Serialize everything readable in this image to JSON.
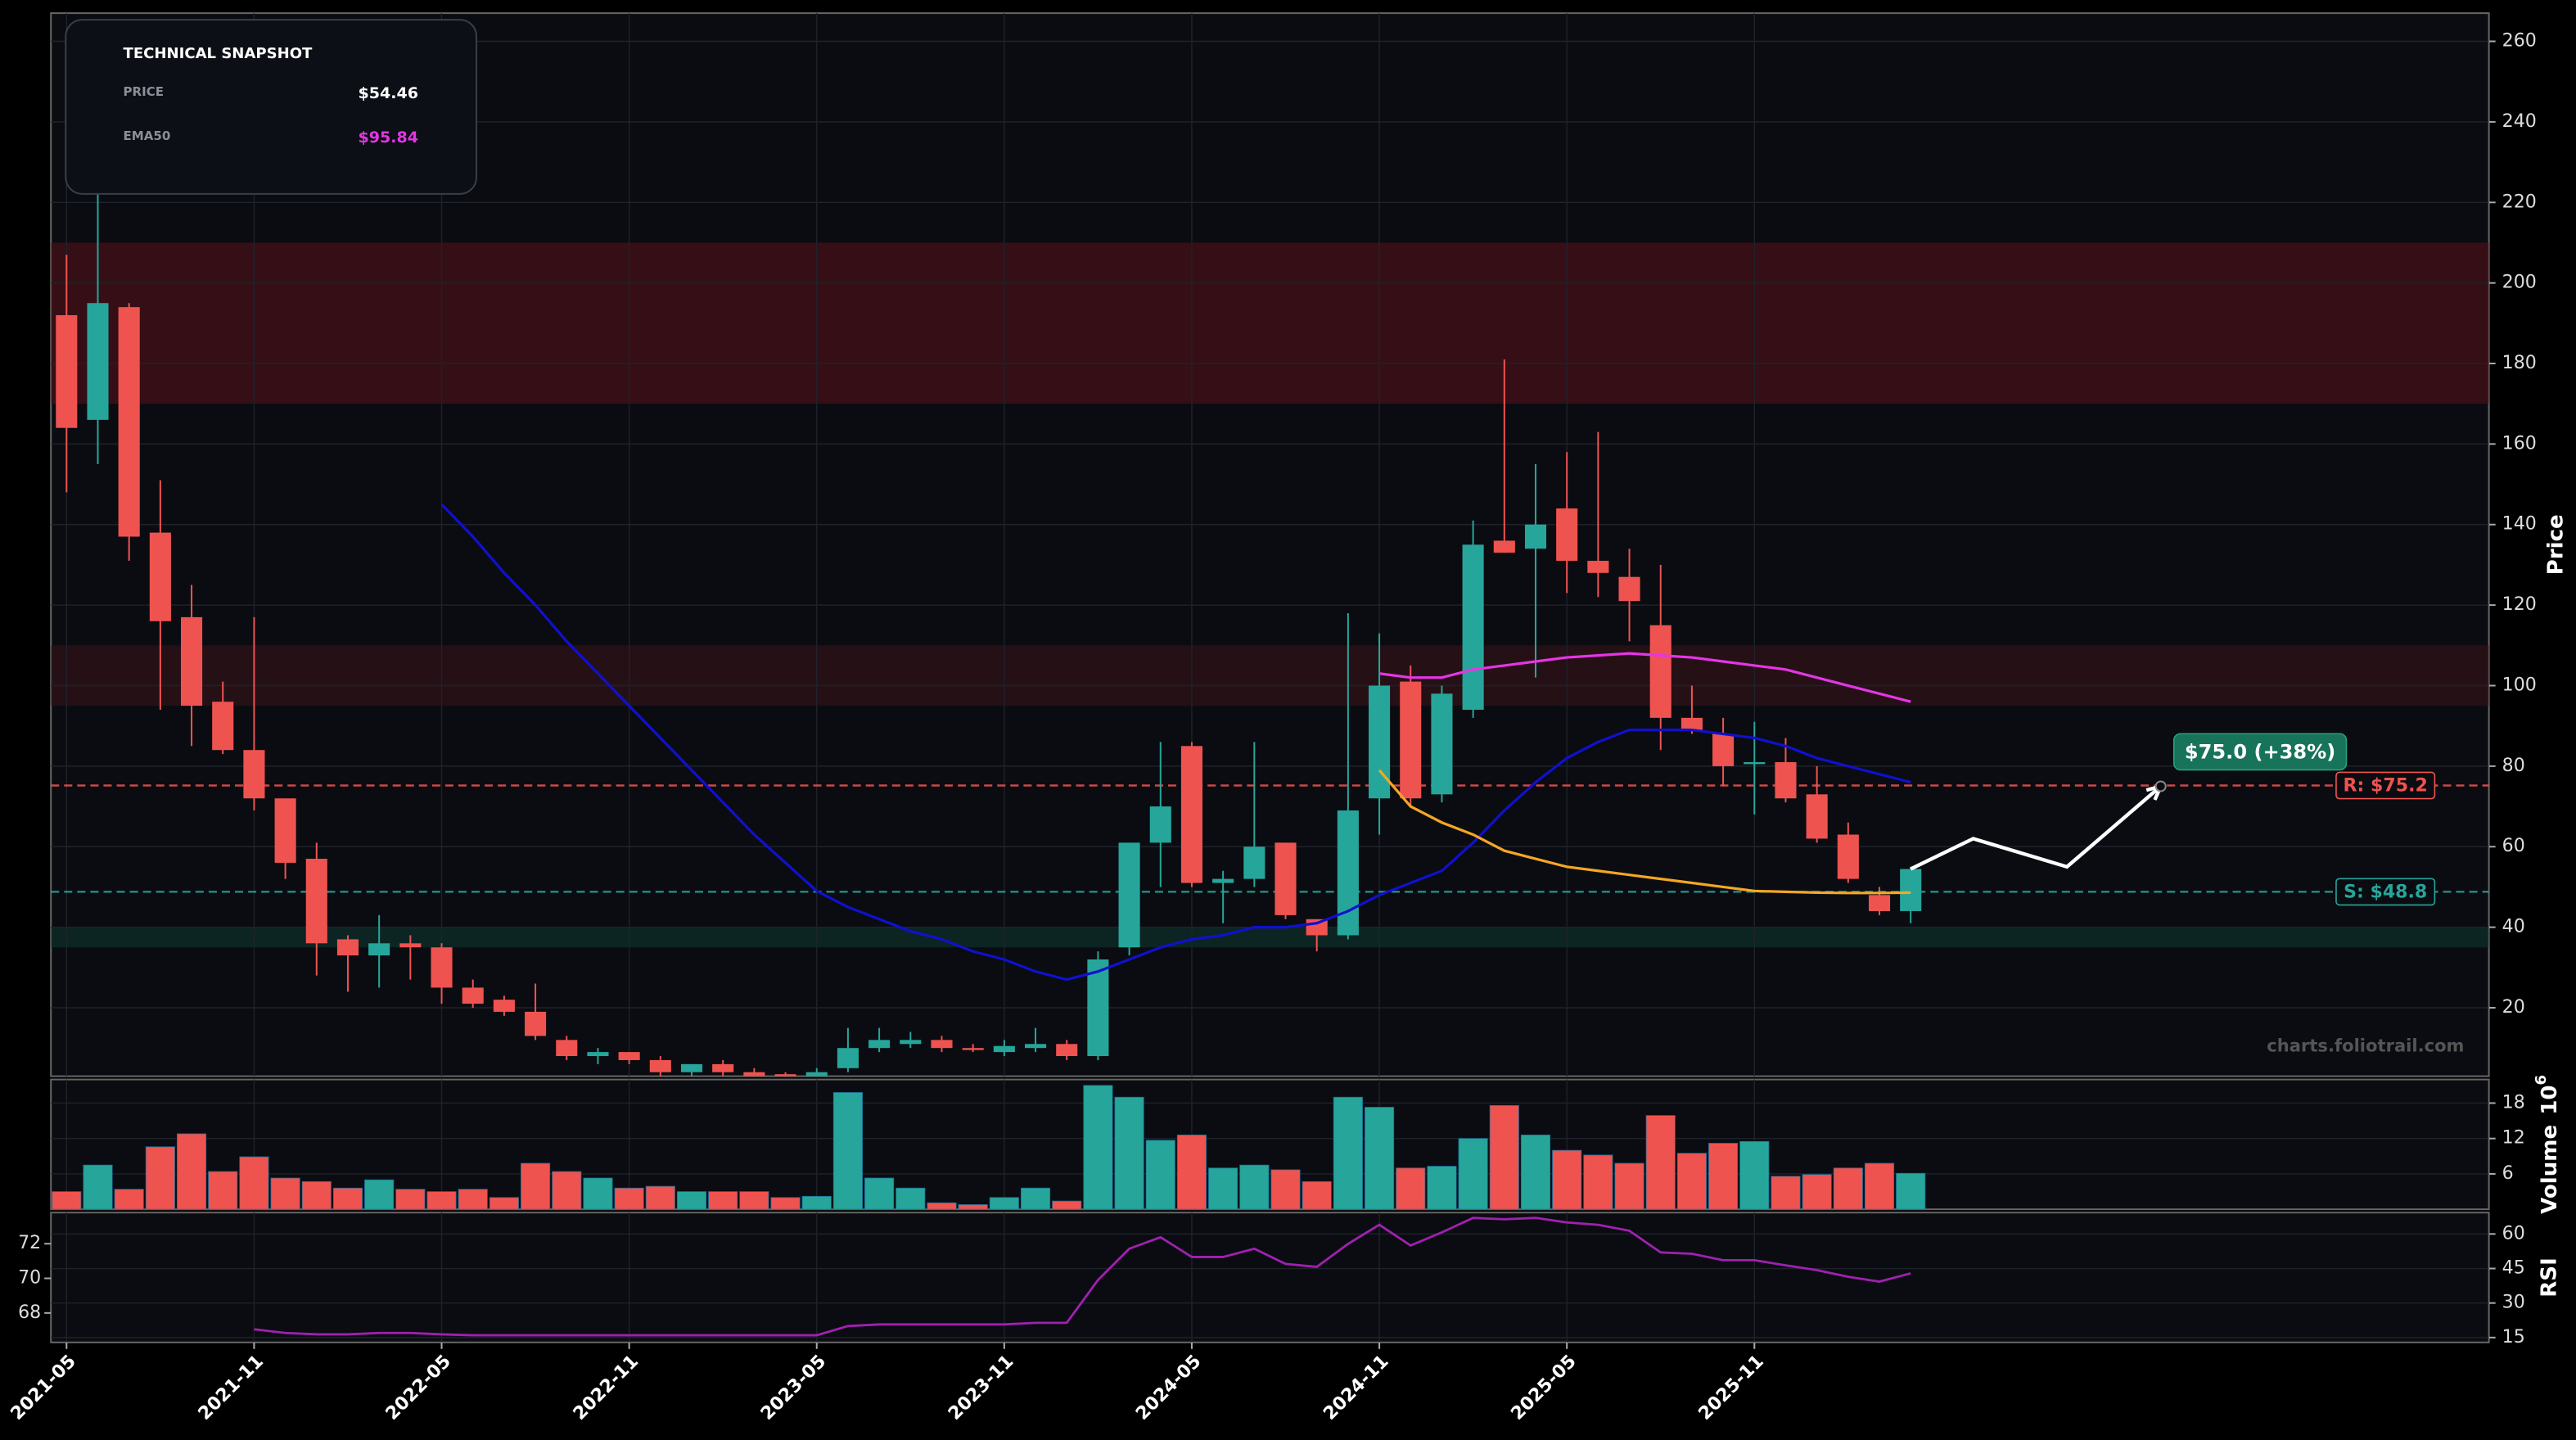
{
  "chart_data": {
    "type": "candlestick",
    "categories": [
      "2021-05",
      "2021-06",
      "2021-07",
      "2021-08",
      "2021-09",
      "2021-10",
      "2021-11",
      "2021-12",
      "2022-01",
      "2022-02",
      "2022-03",
      "2022-04",
      "2022-05",
      "2022-06",
      "2022-07",
      "2022-08",
      "2022-09",
      "2022-10",
      "2022-11",
      "2022-12",
      "2023-01",
      "2023-02",
      "2023-03",
      "2023-04",
      "2023-05",
      "2023-06",
      "2023-07",
      "2023-08",
      "2023-09",
      "2023-10",
      "2023-11",
      "2023-12",
      "2024-01",
      "2024-02",
      "2024-03",
      "2024-04",
      "2024-05",
      "2024-06",
      "2024-07",
      "2024-08",
      "2024-09",
      "2024-10",
      "2024-11",
      "2024-12",
      "2025-01",
      "2025-02",
      "2025-03",
      "2025-04",
      "2025-05",
      "2025-06",
      "2025-07",
      "2025-08",
      "2025-09",
      "2025-10",
      "2025-11",
      "2025-12",
      "2026-01",
      "2026-02",
      "2026-03",
      "2026-04"
    ],
    "open": [
      192,
      166,
      194,
      138,
      117,
      96,
      84,
      72,
      57,
      37,
      33,
      36,
      35,
      25,
      22,
      19,
      12,
      8,
      9,
      7,
      4,
      6,
      4,
      3.5,
      3,
      5,
      10,
      11,
      12,
      10,
      9,
      10,
      11,
      8,
      35,
      61,
      85,
      51,
      52,
      61,
      42,
      38,
      72,
      101,
      73,
      94,
      136,
      134,
      144,
      131,
      127,
      115,
      92,
      88,
      80.5,
      81,
      73,
      63,
      48,
      44
    ],
    "high": [
      207,
      224,
      195,
      151,
      125,
      101,
      117,
      72,
      61,
      38,
      43,
      38,
      36,
      27,
      23,
      26,
      13,
      10,
      9,
      8,
      6,
      7,
      5,
      4,
      5,
      15,
      15,
      14,
      13,
      11,
      12,
      15,
      12,
      34,
      61,
      86,
      86,
      54,
      86,
      61,
      42,
      118,
      113,
      105,
      100,
      141,
      181,
      155,
      158,
      163,
      134,
      130,
      100,
      92,
      91,
      87,
      80,
      66,
      50,
      55
    ],
    "low": [
      148,
      155,
      131,
      94,
      85,
      83,
      69,
      52,
      28,
      24,
      25,
      27,
      21,
      20,
      18,
      12,
      7,
      6,
      6,
      3,
      3,
      3,
      3,
      3,
      3,
      4,
      9,
      10,
      9,
      9,
      8,
      9,
      7,
      7,
      33,
      50,
      50,
      41,
      50,
      42,
      34,
      37,
      63,
      70,
      71,
      92,
      133,
      102,
      123,
      122,
      111,
      84,
      88,
      75,
      68,
      71,
      61,
      51,
      43,
      41
    ],
    "close": [
      164,
      195,
      137,
      116,
      95,
      84,
      72,
      56,
      36,
      33,
      36,
      35,
      25,
      21,
      19,
      13,
      8,
      9,
      7,
      4,
      6,
      4,
      3,
      3,
      4,
      10,
      12,
      12,
      10,
      9.5,
      10.5,
      11,
      8,
      32,
      61,
      70,
      51,
      52,
      60,
      43,
      38,
      69,
      100,
      72,
      98,
      135,
      133,
      140,
      131,
      128,
      121,
      92,
      89,
      80,
      81,
      72,
      62,
      52,
      44,
      54.46
    ],
    "up_color": "#26a69a",
    "down_color": "#ef5350",
    "ylabel": "Price",
    "ylim": [
      3,
      267
    ],
    "yticks": [
      20,
      40,
      60,
      80,
      100,
      120,
      140,
      160,
      180,
      200,
      220,
      240,
      260
    ],
    "xlim": [
      "2021-05",
      "2027-10"
    ],
    "xticks": [
      "2021-05",
      "2021-11",
      "2022-05",
      "2022-11",
      "2023-05",
      "2023-11",
      "2024-05",
      "2024-11",
      "2025-05",
      "2025-11"
    ],
    "grid": true,
    "series": [
      {
        "name": "EMA50",
        "color": "#e535e5",
        "values": [
          null,
          null,
          null,
          null,
          null,
          null,
          null,
          null,
          null,
          null,
          null,
          null,
          null,
          null,
          null,
          null,
          null,
          null,
          null,
          null,
          null,
          null,
          null,
          null,
          null,
          null,
          null,
          null,
          null,
          null,
          null,
          null,
          null,
          null,
          null,
          null,
          null,
          null,
          null,
          null,
          null,
          null,
          103,
          102,
          102,
          104,
          105,
          106,
          107,
          107.5,
          108,
          107.5,
          107,
          106,
          105,
          104,
          102,
          100,
          98,
          96
        ]
      },
      {
        "color": "#1010d0",
        "values": [
          null,
          null,
          null,
          null,
          null,
          null,
          null,
          null,
          null,
          null,
          null,
          null,
          145,
          137,
          128,
          120,
          111,
          103,
          95,
          87,
          79,
          71,
          63,
          56,
          49,
          45,
          42,
          39,
          37,
          34,
          32,
          29,
          27,
          29,
          32,
          35,
          37,
          38,
          40,
          40,
          41,
          44,
          48,
          51,
          54,
          61,
          69,
          76,
          82,
          86,
          89,
          89,
          89,
          88,
          87,
          85,
          82,
          80,
          78,
          76
        ]
      },
      {
        "color": "#f5a623",
        "values": [
          null,
          null,
          null,
          null,
          null,
          null,
          null,
          null,
          null,
          null,
          null,
          null,
          null,
          null,
          null,
          null,
          null,
          null,
          null,
          null,
          null,
          null,
          null,
          null,
          null,
          null,
          null,
          null,
          null,
          null,
          null,
          null,
          null,
          null,
          null,
          null,
          null,
          null,
          null,
          null,
          null,
          null,
          79,
          70,
          66,
          63,
          59,
          57,
          55,
          54,
          53,
          52,
          51,
          50,
          49,
          48.8,
          48.6,
          48.5,
          48.5,
          48.6
        ]
      }
    ],
    "zones": [
      {
        "range": [
          170,
          210
        ],
        "color": "#5a121a"
      },
      {
        "range": [
          95,
          110
        ],
        "color": "#3d141b"
      },
      {
        "range": [
          35,
          40
        ],
        "color": "#0e3a33"
      }
    ],
    "levels": [
      {
        "value": 75.2,
        "label": "R: $75.2",
        "color": "#ef5350"
      },
      {
        "value": 48.8,
        "label": "S: $48.8",
        "color": "#26a69a"
      }
    ],
    "projection": {
      "x": [
        "2026-04",
        "2026-06",
        "2026-09",
        "2026-12"
      ],
      "values": [
        54.46,
        62,
        55,
        75
      ],
      "label": "$75.0 (+38%)",
      "color": "#ffffff",
      "label_color": "#17735a"
    },
    "volume": {
      "ylabel": "Volume",
      "offset_text": "10",
      "offset_exponent": "6",
      "values": [
        3,
        7.5,
        3.4,
        10.6,
        12.8,
        6.4,
        8.9,
        5.3,
        4.7,
        3.6,
        5,
        3.4,
        3,
        3.4,
        2,
        7.8,
        6.4,
        5.3,
        3.6,
        3.9,
        3,
        3,
        3,
        2,
        2.2,
        19.8,
        5.3,
        3.6,
        1.1,
        0.8,
        2,
        3.6,
        1.4,
        21,
        19,
        11.7,
        12.6,
        7,
        7.5,
        6.7,
        4.7,
        19,
        17.3,
        7,
        7.3,
        12,
        17.6,
        12.6,
        10,
        9.2,
        7.8,
        15.9,
        9.5,
        11.2,
        11.5,
        5.6,
        5.9,
        7,
        7.8,
        6.1
      ],
      "ylim": [
        0,
        22
      ],
      "yticks": [
        6,
        12,
        18
      ]
    },
    "rsi": {
      "ylabel": "RSI",
      "color": "#a020b0",
      "values": [
        null,
        null,
        null,
        null,
        null,
        null,
        18.6,
        17,
        16.4,
        16.4,
        17,
        17,
        16.4,
        16,
        16,
        16,
        16,
        16,
        16,
        16,
        16,
        16,
        16,
        16,
        16,
        20,
        20.7,
        20.7,
        20.7,
        20.7,
        20.7,
        21.4,
        21.4,
        40,
        53.6,
        58.6,
        50,
        50,
        53.6,
        47,
        45.7,
        55.7,
        64,
        55,
        60.7,
        67,
        66.4,
        67,
        65,
        64,
        61.4,
        52,
        51.4,
        48.6,
        48.6,
        46.4,
        44.3,
        41.4,
        39.3,
        42.9
      ],
      "axis": "y2",
      "ylim": [
        66.3,
        73.8
      ],
      "yticks": [
        68,
        70,
        72
      ],
      "y2lim": [
        12.9,
        69.3
      ],
      "y2ticks": [
        15,
        30,
        45,
        60
      ]
    },
    "snapshot": {
      "title": "TECHNICAL SNAPSHOT",
      "rows": [
        {
          "label": "PRICE",
          "value": "$54.46",
          "color": "#ffffff"
        },
        {
          "label": "EMA50",
          "value": "$95.84",
          "color": "#e535e5"
        }
      ]
    },
    "watermark": "charts.foliotrail.com"
  }
}
